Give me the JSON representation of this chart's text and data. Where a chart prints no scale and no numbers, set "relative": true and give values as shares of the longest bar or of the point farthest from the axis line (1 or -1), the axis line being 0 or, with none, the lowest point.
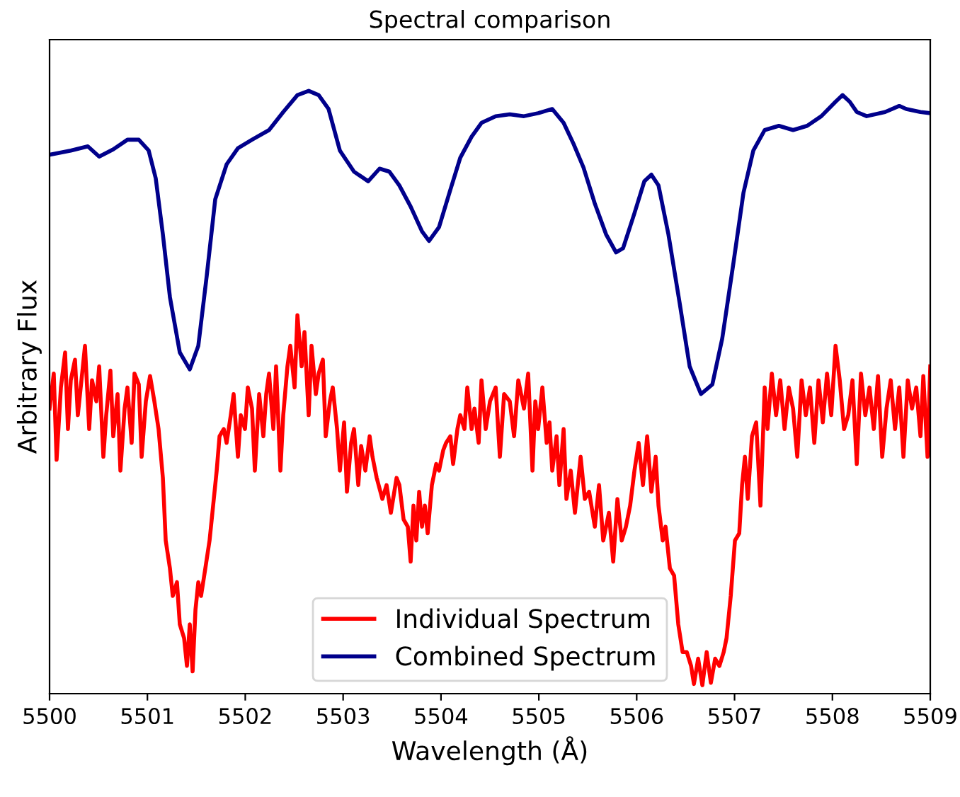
{
  "chart_data": {
    "type": "line",
    "title": "Spectral comparison",
    "xlabel": "Wavelength (Å)",
    "ylabel": "Arbitrary Flux",
    "relative": true,
    "xlim": [
      5500,
      5509
    ],
    "xticks": [
      5500,
      5501,
      5502,
      5503,
      5504,
      5505,
      5506,
      5507,
      5508,
      5509
    ],
    "grid": false,
    "legend": "bottom",
    "marker": "none",
    "line_style": "solid",
    "series": [
      {
        "name": "Individual Spectrum",
        "color": "#ff0000",
        "x": [
          5500.0,
          5500.043,
          5500.072,
          5500.116,
          5500.159,
          5500.188,
          5500.217,
          5500.26,
          5500.289,
          5500.333,
          5500.362,
          5500.405,
          5500.434,
          5500.478,
          5500.507,
          5500.55,
          5500.579,
          5500.622,
          5500.651,
          5500.695,
          5500.724,
          5500.767,
          5500.796,
          5500.839,
          5500.868,
          5500.912,
          5500.941,
          5500.984,
          5501.027,
          5501.071,
          5501.114,
          5501.158,
          5501.187,
          5501.23,
          5501.259,
          5501.302,
          5501.331,
          5501.375,
          5501.404,
          5501.433,
          5501.462,
          5501.491,
          5501.52,
          5501.548,
          5501.592,
          5501.635,
          5501.664,
          5501.708,
          5501.737,
          5501.78,
          5501.809,
          5501.852,
          5501.881,
          5501.925,
          5501.954,
          5501.997,
          5502.026,
          5502.069,
          5502.098,
          5502.142,
          5502.185,
          5502.214,
          5502.243,
          5502.287,
          5502.315,
          5502.359,
          5502.388,
          5502.431,
          5502.46,
          5502.504,
          5502.533,
          5502.576,
          5502.605,
          5502.648,
          5502.677,
          5502.721,
          5502.75,
          5502.793,
          5502.822,
          5502.865,
          5502.894,
          5502.938,
          5502.967,
          5503.01,
          5503.039,
          5503.082,
          5503.111,
          5503.155,
          5503.184,
          5503.227,
          5503.271,
          5503.3,
          5503.343,
          5503.401,
          5503.444,
          5503.488,
          5503.546,
          5503.575,
          5503.618,
          5503.661,
          5503.69,
          5503.719,
          5503.748,
          5503.777,
          5503.806,
          5503.835,
          5503.864,
          5503.907,
          5503.951,
          5503.98,
          5504.023,
          5504.052,
          5504.096,
          5504.124,
          5504.168,
          5504.197,
          5504.24,
          5504.269,
          5504.313,
          5504.342,
          5504.385,
          5504.414,
          5504.457,
          5504.501,
          5504.559,
          5504.602,
          5504.645,
          5504.703,
          5504.747,
          5504.79,
          5504.848,
          5504.891,
          5504.935,
          5504.964,
          5504.993,
          5505.036,
          5505.08,
          5505.109,
          5505.137,
          5505.181,
          5505.21,
          5505.253,
          5505.282,
          5505.326,
          5505.369,
          5505.427,
          5505.47,
          5505.514,
          5505.572,
          5505.615,
          5505.658,
          5505.716,
          5505.76,
          5505.803,
          5505.847,
          5505.89,
          5505.933,
          5505.977,
          5506.02,
          5506.064,
          5506.107,
          5506.15,
          5506.194,
          5506.223,
          5506.266,
          5506.295,
          5506.339,
          5506.382,
          5506.425,
          5506.469,
          5506.512,
          5506.556,
          5506.585,
          5506.628,
          5506.671,
          5506.715,
          5506.758,
          5506.802,
          5506.845,
          5506.889,
          5506.918,
          5506.961,
          5507.004,
          5507.048,
          5507.077,
          5507.106,
          5507.135,
          5507.178,
          5507.221,
          5507.265,
          5507.308,
          5507.337,
          5507.381,
          5507.424,
          5507.467,
          5507.511,
          5507.554,
          5507.598,
          5507.641,
          5507.685,
          5507.728,
          5507.771,
          5507.815,
          5507.858,
          5507.902,
          5507.945,
          5507.988,
          5508.032,
          5508.075,
          5508.119,
          5508.162,
          5508.205,
          5508.249,
          5508.292,
          5508.336,
          5508.379,
          5508.423,
          5508.466,
          5508.509,
          5508.553,
          5508.596,
          5508.64,
          5508.683,
          5508.726,
          5508.77,
          5508.813,
          5508.857,
          5508.9,
          5508.929,
          5508.972,
          5509.0
        ],
        "values": [
          0.473,
          0.531,
          0.388,
          0.508,
          0.566,
          0.439,
          0.52,
          0.554,
          0.462,
          0.531,
          0.577,
          0.439,
          0.52,
          0.485,
          0.543,
          0.393,
          0.462,
          0.536,
          0.427,
          0.497,
          0.37,
          0.473,
          0.508,
          0.416,
          0.531,
          0.513,
          0.393,
          0.485,
          0.527,
          0.485,
          0.439,
          0.358,
          0.254,
          0.208,
          0.162,
          0.185,
          0.115,
          0.092,
          0.046,
          0.115,
          0.037,
          0.139,
          0.185,
          0.162,
          0.208,
          0.254,
          0.3,
          0.37,
          0.427,
          0.439,
          0.416,
          0.462,
          0.497,
          0.393,
          0.462,
          0.439,
          0.508,
          0.473,
          0.37,
          0.497,
          0.427,
          0.497,
          0.531,
          0.439,
          0.543,
          0.37,
          0.462,
          0.543,
          0.577,
          0.508,
          0.628,
          0.543,
          0.6,
          0.462,
          0.577,
          0.497,
          0.531,
          0.554,
          0.427,
          0.485,
          0.508,
          0.439,
          0.37,
          0.45,
          0.335,
          0.416,
          0.439,
          0.346,
          0.411,
          0.37,
          0.427,
          0.393,
          0.358,
          0.323,
          0.346,
          0.3,
          0.358,
          0.346,
          0.289,
          0.277,
          0.219,
          0.312,
          0.254,
          0.335,
          0.277,
          0.312,
          0.266,
          0.346,
          0.381,
          0.37,
          0.404,
          0.416,
          0.427,
          0.381,
          0.439,
          0.462,
          0.439,
          0.508,
          0.439,
          0.473,
          0.416,
          0.52,
          0.439,
          0.485,
          0.508,
          0.393,
          0.497,
          0.485,
          0.427,
          0.52,
          0.473,
          0.531,
          0.37,
          0.485,
          0.439,
          0.508,
          0.416,
          0.45,
          0.37,
          0.427,
          0.346,
          0.439,
          0.323,
          0.37,
          0.3,
          0.393,
          0.323,
          0.335,
          0.277,
          0.346,
          0.254,
          0.3,
          0.219,
          0.323,
          0.254,
          0.277,
          0.312,
          0.37,
          0.416,
          0.346,
          0.427,
          0.335,
          0.393,
          0.312,
          0.254,
          0.277,
          0.208,
          0.196,
          0.115,
          0.069,
          0.069,
          0.046,
          0.016,
          0.058,
          0.014,
          0.069,
          0.018,
          0.058,
          0.046,
          0.069,
          0.092,
          0.162,
          0.254,
          0.266,
          0.346,
          0.393,
          0.323,
          0.427,
          0.45,
          0.312,
          0.508,
          0.439,
          0.531,
          0.462,
          0.52,
          0.439,
          0.508,
          0.473,
          0.393,
          0.52,
          0.462,
          0.508,
          0.416,
          0.52,
          0.45,
          0.531,
          0.462,
          0.577,
          0.52,
          0.439,
          0.462,
          0.52,
          0.381,
          0.531,
          0.462,
          0.508,
          0.439,
          0.527,
          0.393,
          0.473,
          0.52,
          0.439,
          0.508,
          0.393,
          0.52,
          0.473,
          0.508,
          0.427,
          0.527,
          0.393,
          0.543
        ]
      },
      {
        "name": "Combined Spectrum",
        "color": "#00008b",
        "x": [
          5500.0,
          5500.217,
          5500.391,
          5500.507,
          5500.651,
          5500.796,
          5500.912,
          5501.013,
          5501.085,
          5501.158,
          5501.23,
          5501.331,
          5501.433,
          5501.52,
          5501.606,
          5501.693,
          5501.809,
          5501.925,
          5502.069,
          5502.243,
          5502.388,
          5502.533,
          5502.648,
          5502.75,
          5502.851,
          5502.967,
          5503.111,
          5503.256,
          5503.372,
          5503.473,
          5503.575,
          5503.69,
          5503.806,
          5503.878,
          5503.98,
          5504.096,
          5504.197,
          5504.313,
          5504.414,
          5504.559,
          5504.703,
          5504.848,
          5504.993,
          5505.137,
          5505.253,
          5505.355,
          5505.456,
          5505.572,
          5505.687,
          5505.789,
          5505.861,
          5505.977,
          5506.078,
          5506.15,
          5506.223,
          5506.324,
          5506.44,
          5506.541,
          5506.657,
          5506.773,
          5506.874,
          5506.99,
          5507.091,
          5507.192,
          5507.308,
          5507.453,
          5507.598,
          5507.742,
          5507.887,
          5508.032,
          5508.104,
          5508.177,
          5508.249,
          5508.35,
          5508.538,
          5508.683,
          5508.755,
          5508.9,
          5509.0
        ],
        "values": [
          0.894,
          0.901,
          0.908,
          0.891,
          0.903,
          0.919,
          0.919,
          0.901,
          0.855,
          0.762,
          0.658,
          0.566,
          0.538,
          0.577,
          0.693,
          0.82,
          0.878,
          0.905,
          0.919,
          0.935,
          0.965,
          0.993,
          1.0,
          0.993,
          0.97,
          0.901,
          0.866,
          0.85,
          0.871,
          0.866,
          0.843,
          0.808,
          0.767,
          0.751,
          0.774,
          0.836,
          0.889,
          0.924,
          0.947,
          0.958,
          0.961,
          0.958,
          0.963,
          0.97,
          0.947,
          0.912,
          0.873,
          0.813,
          0.762,
          0.732,
          0.739,
          0.797,
          0.85,
          0.861,
          0.843,
          0.762,
          0.647,
          0.543,
          0.497,
          0.513,
          0.589,
          0.716,
          0.831,
          0.901,
          0.935,
          0.942,
          0.935,
          0.942,
          0.958,
          0.982,
          0.993,
          0.982,
          0.965,
          0.958,
          0.965,
          0.975,
          0.97,
          0.965,
          0.963
        ]
      }
    ]
  }
}
